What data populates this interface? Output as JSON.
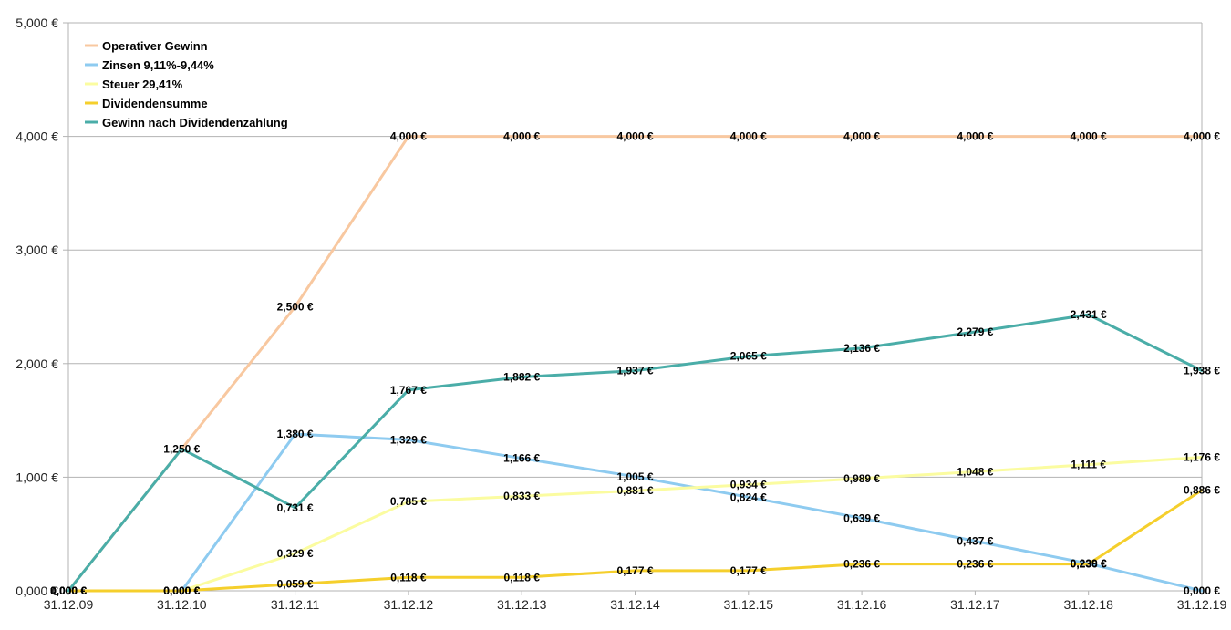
{
  "chart_data": {
    "type": "line",
    "title": "",
    "xlabel": "",
    "ylabel": "",
    "categories": [
      "31.12.09",
      "31.12.10",
      "31.12.11",
      "31.12.12",
      "31.12.13",
      "31.12.14",
      "31.12.15",
      "31.12.16",
      "31.12.17",
      "31.12.18",
      "31.12.19"
    ],
    "ylim": [
      0,
      5
    ],
    "y_ticks": [
      0,
      1,
      2,
      3,
      4,
      5
    ],
    "y_tick_labels": [
      "0,000 €",
      "1,000 €",
      "2,000 €",
      "3,000 €",
      "4,000 €",
      "5,000 €"
    ],
    "grid": true,
    "legend_position": "top-left",
    "series": [
      {
        "name": "Operativer Gewinn",
        "color": "#f8c8a0",
        "values": [
          0,
          1.25,
          2.5,
          4,
          4,
          4,
          4,
          4,
          4,
          4,
          4
        ],
        "labels": [
          "0,000 €",
          "",
          "2,500 €",
          "4,000 €",
          "4,000 €",
          "4,000 €",
          "4,000 €",
          "4,000 €",
          "4,000 €",
          "4,000 €",
          "4,000 €"
        ]
      },
      {
        "name": "Zinsen 9,11%-9,44%",
        "color": "#8ecbf0",
        "values": [
          0,
          0,
          1.38,
          1.329,
          1.166,
          1.005,
          0.824,
          0.639,
          0.437,
          0.239,
          0
        ],
        "labels": [
          "0,000 €",
          "0,000 €",
          "1,380 €",
          "1,329 €",
          "1,166 €",
          "1,005 €",
          "0,824 €",
          "0,639 €",
          "0,437 €",
          "0,239 €",
          "0,000 €"
        ]
      },
      {
        "name": "Steuer 29,41%",
        "color": "#fbfca0",
        "values": [
          0,
          0,
          0.329,
          0.785,
          0.833,
          0.881,
          0.934,
          0.989,
          1.048,
          1.111,
          1.176
        ],
        "labels": [
          "0,000 €",
          "0,000 €",
          "0,329 €",
          "0,785 €",
          "0,833 €",
          "0,881 €",
          "0,934 €",
          "0,989 €",
          "1,048 €",
          "1,111 €",
          "1,176 €"
        ]
      },
      {
        "name": "Dividendensumme",
        "color": "#f5cf2c",
        "values": [
          0,
          0,
          0.059,
          0.118,
          0.118,
          0.177,
          0.177,
          0.236,
          0.236,
          0.236,
          0.886
        ],
        "labels": [
          "0,000 €",
          "0,000 €",
          "0,059 €",
          "0,118 €",
          "0,118 €",
          "0,177 €",
          "0,177 €",
          "0,236 €",
          "0,236 €",
          "0,236 €",
          "0,886 €"
        ]
      },
      {
        "name": "Gewinn nach Dividendenzahlung",
        "color": "#4aada8",
        "values": [
          0,
          1.25,
          0.731,
          1.767,
          1.882,
          1.937,
          2.065,
          2.136,
          2.279,
          2.431,
          1.938
        ],
        "labels": [
          "0,000 €",
          "1,250 €",
          "0,731 €",
          "1,767 €",
          "1,882 €",
          "1,937 €",
          "2,065 €",
          "2,136 €",
          "2,279 €",
          "2,431 €",
          "1,938 €"
        ]
      }
    ]
  }
}
